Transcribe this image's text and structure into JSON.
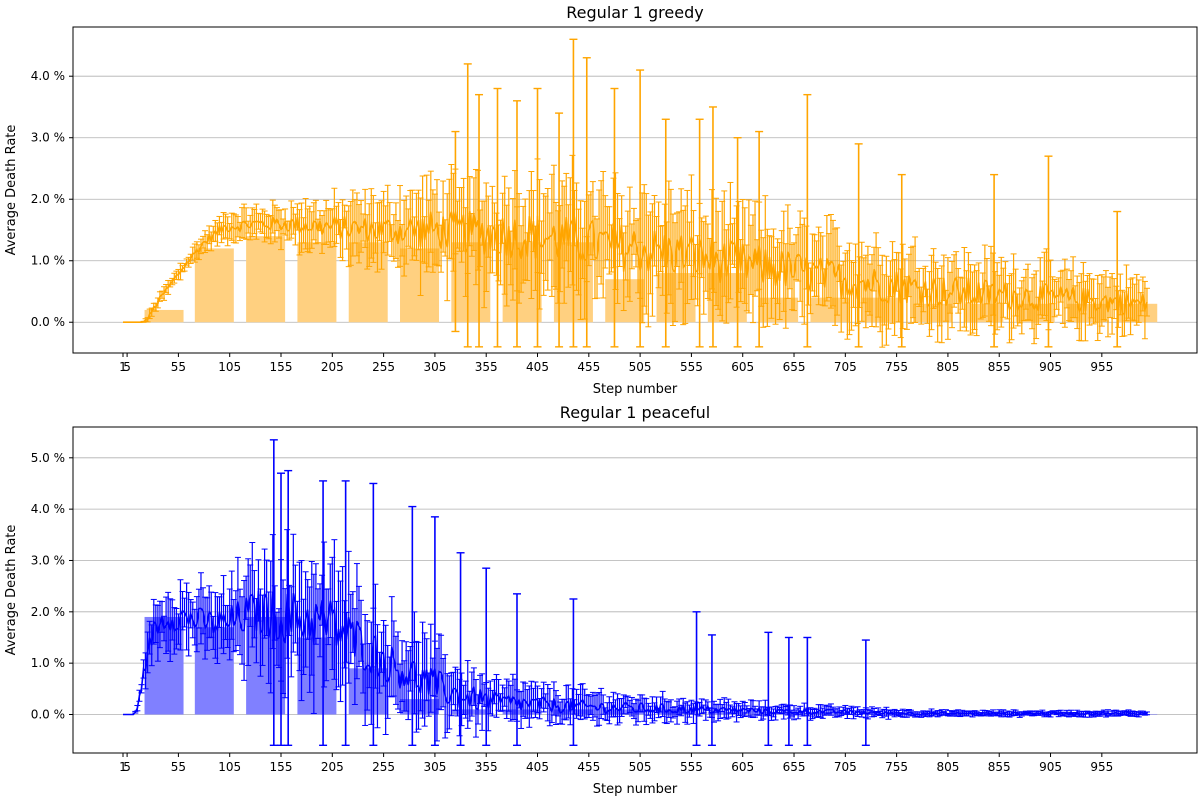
{
  "chart_data": [
    {
      "type": "bar",
      "title": "Regular 1 greedy",
      "xlabel": "Step number",
      "ylabel": "Average Death Rate",
      "x_ticks": [
        "1",
        "5",
        "55",
        "105",
        "155",
        "205",
        "255",
        "305",
        "355",
        "405",
        "455",
        "505",
        "555",
        "605",
        "655",
        "705",
        "755",
        "805",
        "855",
        "905",
        "955"
      ],
      "y_ticks": [
        "0.0 %",
        "1.0 %",
        "2.0 %",
        "3.0 %",
        "4.0 %"
      ],
      "ylim": [
        -0.5,
        4.8
      ],
      "grid": "y",
      "colors": {
        "bar": "#ffd080",
        "line": "#ffa500"
      },
      "bars": {
        "x": [
          41,
          90,
          140,
          190,
          240,
          290,
          340,
          390,
          440,
          490,
          540,
          590,
          640,
          690,
          740,
          790,
          840,
          890,
          940,
          990
        ],
        "values": [
          0.2,
          1.2,
          1.4,
          1.3,
          1.3,
          1.2,
          1.3,
          1.3,
          1.3,
          0.7,
          0.8,
          0.8,
          0.4,
          0.4,
          0.4,
          0.3,
          0.3,
          0.3,
          0.3,
          0.3
        ]
      },
      "series_profile": {
        "step": [
          1,
          20,
          25,
          30,
          40,
          60,
          80,
          100,
          130,
          160,
          200,
          250,
          300,
          350,
          400,
          450,
          500,
          550,
          600,
          650,
          700,
          750,
          800,
          850,
          900,
          950,
          1000
        ],
        "mean": [
          0,
          0,
          0.05,
          0.2,
          0.45,
          0.9,
          1.3,
          1.55,
          1.6,
          1.6,
          1.55,
          1.5,
          1.5,
          1.45,
          1.4,
          1.3,
          1.2,
          1.1,
          0.95,
          0.85,
          0.7,
          0.6,
          0.5,
          0.45,
          0.4,
          0.35,
          0.3
        ],
        "error": [
          0,
          0,
          0.05,
          0.1,
          0.1,
          0.12,
          0.15,
          0.2,
          0.25,
          0.3,
          0.4,
          0.5,
          0.7,
          0.8,
          0.9,
          0.9,
          0.9,
          0.85,
          0.8,
          0.75,
          0.7,
          0.65,
          0.6,
          0.55,
          0.5,
          0.45,
          0.4
        ]
      },
      "tall_errorbars": [
        {
          "x": 325,
          "top": 3.1
        },
        {
          "x": 337,
          "top": 4.2
        },
        {
          "x": 348,
          "top": 3.7
        },
        {
          "x": 366,
          "top": 3.8
        },
        {
          "x": 385,
          "top": 3.6
        },
        {
          "x": 405,
          "top": 3.8
        },
        {
          "x": 426,
          "top": 3.4
        },
        {
          "x": 440,
          "top": 4.6
        },
        {
          "x": 453,
          "top": 4.3
        },
        {
          "x": 480,
          "top": 3.8
        },
        {
          "x": 505,
          "top": 4.1
        },
        {
          "x": 530,
          "top": 3.3
        },
        {
          "x": 563,
          "top": 3.3
        },
        {
          "x": 576,
          "top": 3.5
        },
        {
          "x": 600,
          "top": 3.0
        },
        {
          "x": 621,
          "top": 3.1
        },
        {
          "x": 668,
          "top": 3.7
        },
        {
          "x": 718,
          "top": 2.9
        },
        {
          "x": 760,
          "top": 2.4
        },
        {
          "x": 850,
          "top": 2.4
        },
        {
          "x": 903,
          "top": 2.7
        },
        {
          "x": 970,
          "top": 1.8
        }
      ]
    },
    {
      "type": "bar",
      "title": "Regular 1 peaceful",
      "xlabel": "Step number",
      "ylabel": "Average Death Rate",
      "x_ticks": [
        "1",
        "5",
        "55",
        "105",
        "155",
        "205",
        "255",
        "305",
        "355",
        "405",
        "455",
        "505",
        "555",
        "605",
        "655",
        "705",
        "755",
        "805",
        "855",
        "905",
        "955"
      ],
      "y_ticks": [
        "0.0 %",
        "1.0 %",
        "2.0 %",
        "3.0 %",
        "4.0 %",
        "5.0 %"
      ],
      "ylim": [
        -0.75,
        5.6
      ],
      "grid": "y",
      "colors": {
        "bar": "#8080ff",
        "line": "#0000ff"
      },
      "bars": {
        "x": [
          41,
          90,
          140,
          190,
          240,
          290,
          340,
          390,
          440,
          490,
          540,
          590,
          640,
          690,
          740,
          790,
          840,
          890,
          940,
          990
        ],
        "values": [
          1.9,
          1.7,
          1.9,
          1.5,
          0.9,
          0.3,
          0.1,
          0.1,
          0.1,
          0.1,
          0.1,
          0.05,
          0.05,
          0.05,
          0.02,
          0.01,
          0.01,
          0.01,
          0.01,
          0.01
        ]
      },
      "series_profile": {
        "step": [
          1,
          12,
          16,
          22,
          30,
          40,
          60,
          80,
          100,
          130,
          160,
          200,
          230,
          260,
          300,
          330,
          360,
          400,
          450,
          500,
          550,
          600,
          650,
          700,
          740,
          800,
          900,
          1000
        ],
        "mean": [
          0,
          0,
          0.2,
          0.9,
          1.6,
          1.85,
          1.9,
          1.8,
          1.75,
          2.0,
          1.9,
          1.8,
          1.4,
          1.0,
          0.6,
          0.35,
          0.25,
          0.2,
          0.15,
          0.12,
          0.1,
          0.08,
          0.06,
          0.05,
          0.03,
          0.02,
          0.02,
          0.02
        ],
        "error": [
          0,
          0,
          0.1,
          0.3,
          0.5,
          0.5,
          0.6,
          0.6,
          0.7,
          1.0,
          1.2,
          1.2,
          1.1,
          0.9,
          0.8,
          0.6,
          0.45,
          0.35,
          0.3,
          0.25,
          0.2,
          0.15,
          0.12,
          0.1,
          0.08,
          0.05,
          0.05,
          0.05
        ]
      },
      "tall_errorbars": [
        {
          "x": 148,
          "top": 5.35
        },
        {
          "x": 155,
          "top": 4.7
        },
        {
          "x": 162,
          "top": 4.75
        },
        {
          "x": 196,
          "top": 4.55
        },
        {
          "x": 218,
          "top": 4.55
        },
        {
          "x": 245,
          "top": 4.5
        },
        {
          "x": 283,
          "top": 4.05
        },
        {
          "x": 305,
          "top": 3.85
        },
        {
          "x": 330,
          "top": 3.15
        },
        {
          "x": 355,
          "top": 2.85
        },
        {
          "x": 385,
          "top": 2.35
        },
        {
          "x": 440,
          "top": 2.25
        },
        {
          "x": 560,
          "top": 2.0
        },
        {
          "x": 575,
          "top": 1.55
        },
        {
          "x": 630,
          "top": 1.6
        },
        {
          "x": 650,
          "top": 1.5
        },
        {
          "x": 668,
          "top": 1.5
        },
        {
          "x": 725,
          "top": 1.45
        }
      ]
    }
  ]
}
